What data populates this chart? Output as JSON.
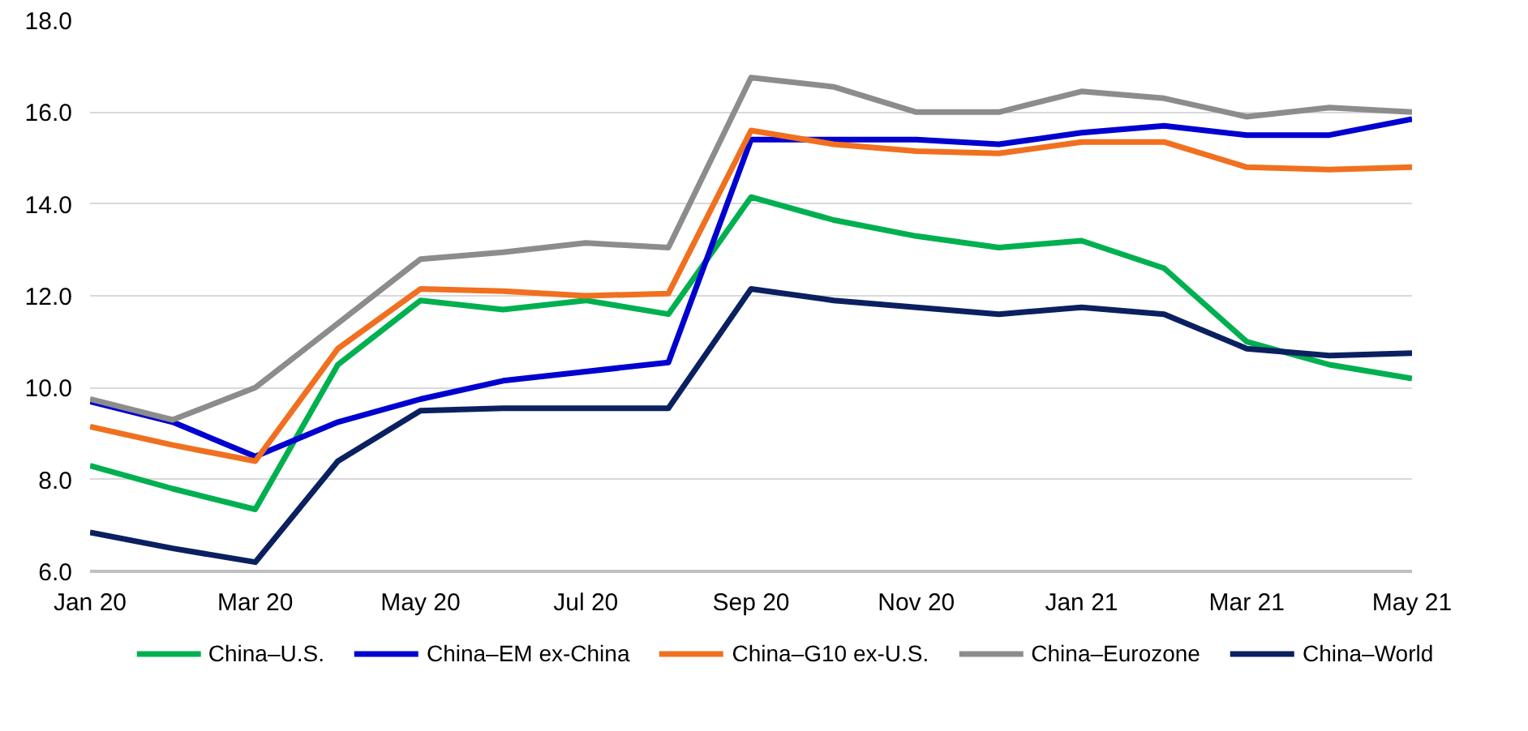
{
  "chart_data": {
    "type": "line",
    "categories": [
      "Jan 20",
      null,
      "Mar 20",
      null,
      "May 20",
      null,
      "Jul 20",
      null,
      "Sep 20",
      null,
      "Nov 20",
      null,
      "Jan 21",
      null,
      "Mar 21",
      null,
      "May 21"
    ],
    "series": [
      {
        "name": "China–U.S.",
        "color": "#00b050",
        "values": [
          8.3,
          7.8,
          7.35,
          10.5,
          11.9,
          11.7,
          11.9,
          11.6,
          14.15,
          13.65,
          13.3,
          13.05,
          13.2,
          12.6,
          11.0,
          10.5,
          10.2
        ]
      },
      {
        "name": "China–EM ex-China",
        "color": "#0000d0",
        "values": [
          9.7,
          9.25,
          8.5,
          9.25,
          9.75,
          10.15,
          10.35,
          10.55,
          15.4,
          15.4,
          15.4,
          15.3,
          15.55,
          15.7,
          15.5,
          15.5,
          15.85
        ]
      },
      {
        "name": "China–G10 ex-U.S.",
        "color": "#f07020",
        "values": [
          9.15,
          8.75,
          8.4,
          10.85,
          12.15,
          12.1,
          12.0,
          12.05,
          15.6,
          15.3,
          15.15,
          15.1,
          15.35,
          15.35,
          14.8,
          14.75,
          14.8
        ]
      },
      {
        "name": "China–Eurozone",
        "color": "#8c8c8c",
        "values": [
          9.75,
          9.3,
          10.0,
          11.4,
          12.8,
          12.95,
          13.15,
          13.05,
          16.75,
          16.55,
          16.0,
          16.0,
          16.45,
          16.3,
          15.9,
          16.1,
          16.0
        ]
      },
      {
        "name": "China–World",
        "color": "#0a2060",
        "values": [
          6.85,
          6.5,
          6.2,
          8.4,
          9.5,
          9.55,
          9.55,
          9.55,
          12.15,
          11.9,
          11.75,
          11.6,
          11.75,
          11.6,
          10.85,
          10.7,
          10.75
        ]
      }
    ],
    "ylim": [
      6,
      18
    ],
    "yticks": [
      {
        "value": 6,
        "label": "6.0"
      },
      {
        "value": 8,
        "label": "8.0"
      },
      {
        "value": 10,
        "label": "10.0"
      },
      {
        "value": 12,
        "label": "12.0"
      },
      {
        "value": 14,
        "label": "14.0"
      },
      {
        "value": 16,
        "label": "16.0"
      },
      {
        "value": 18,
        "label": "18.0"
      }
    ],
    "grid": "y",
    "legend": "bottom",
    "line_style": "solid"
  }
}
